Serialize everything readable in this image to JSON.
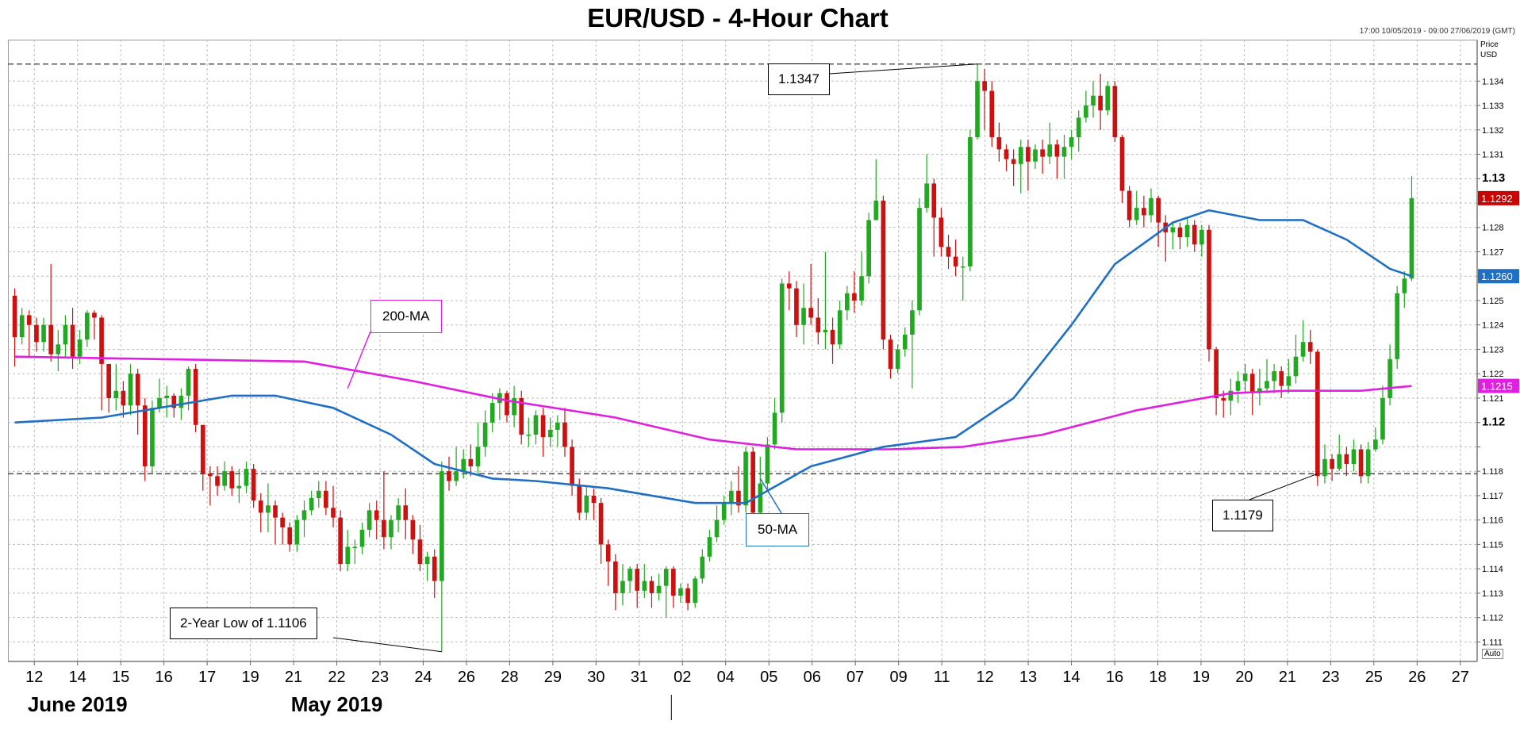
{
  "chart_data": {
    "type": "candlestick",
    "title": "EUR/USD - 4-Hour Chart",
    "range_note": "17:00 10/05/2019 - 09:00 27/06/2019 (GMT)",
    "yaxis_header": [
      "Price",
      "USD"
    ],
    "ylim": [
      1.1102,
      1.1357
    ],
    "y_ticks": [
      1.111,
      1.112,
      1.113,
      1.114,
      1.115,
      1.116,
      1.117,
      1.118,
      1.119,
      1.12,
      1.121,
      1.122,
      1.123,
      1.124,
      1.125,
      1.126,
      1.127,
      1.128,
      1.129,
      1.13,
      1.131,
      1.132,
      1.133,
      1.134
    ],
    "y_tick_labels": [
      "1.111",
      "1.112",
      "1.113",
      "1.114",
      "1.115",
      "1.116",
      "1.117",
      "1.118",
      "",
      "1.12",
      "1.121",
      "1.122",
      "1.123",
      "1.124",
      "1.125",
      "",
      "1.127",
      "1.128",
      "",
      "1.13",
      "1.131",
      "1.132",
      "1.133",
      "1.134"
    ],
    "y_tick_bold": [
      1.12,
      1.13
    ],
    "price_tags": [
      {
        "label": "1.1292",
        "value": 1.1292,
        "color": "#cc0000"
      },
      {
        "label": "1.1260",
        "value": 1.126,
        "color": "#1f6fc4"
      },
      {
        "label": "1.1215",
        "value": 1.1215,
        "color": "#e020e0"
      }
    ],
    "x_day_labels": [
      "12",
      "14",
      "15",
      "16",
      "17",
      "19",
      "21",
      "22",
      "23",
      "24",
      "26",
      "28",
      "29",
      "30",
      "31",
      "02",
      "04",
      "05",
      "06",
      "07",
      "09",
      "11",
      "12",
      "13",
      "14",
      "16",
      "18",
      "19",
      "20",
      "21",
      "23",
      "25",
      "26",
      "27"
    ],
    "month_labels": [
      {
        "label": "May 2019",
        "anchor_day": "22"
      },
      {
        "label": "June 2019",
        "anchor_day": "14"
      }
    ],
    "month_divider_day": "02",
    "horizontal_levels": [
      1.1347,
      1.1179
    ],
    "callouts": [
      {
        "text": "1.1347",
        "value": 1.1347
      },
      {
        "text": "1.1179",
        "value": 1.1179
      },
      {
        "text": "2-Year Low of 1.1106",
        "value": 1.1106
      }
    ],
    "ma_labels": {
      "ma200": "200-MA",
      "ma50": "50-MA"
    },
    "ma200_color": "#e020e0",
    "ma50_color": "#1f6fc4",
    "ma200": [
      [
        0,
        1.1227
      ],
      [
        20,
        1.1226
      ],
      [
        40,
        1.1225
      ],
      [
        55,
        1.1217
      ],
      [
        68,
        1.1209
      ],
      [
        83,
        1.1202
      ],
      [
        96,
        1.1193
      ],
      [
        108,
        1.1189
      ],
      [
        121,
        1.1189
      ],
      [
        131,
        1.119
      ],
      [
        142,
        1.1195
      ],
      [
        155,
        1.1205
      ],
      [
        168,
        1.1212
      ],
      [
        176,
        1.1213
      ],
      [
        186,
        1.1213
      ],
      [
        193,
        1.1215
      ]
    ],
    "ma50": [
      [
        0,
        1.12
      ],
      [
        12,
        1.1202
      ],
      [
        24,
        1.1208
      ],
      [
        30,
        1.1211
      ],
      [
        36,
        1.1211
      ],
      [
        44,
        1.1206
      ],
      [
        52,
        1.1195
      ],
      [
        58,
        1.1183
      ],
      [
        66,
        1.1177
      ],
      [
        72,
        1.1176
      ],
      [
        82,
        1.1173
      ],
      [
        94,
        1.1167
      ],
      [
        101,
        1.1167
      ],
      [
        110,
        1.1182
      ],
      [
        120,
        1.119
      ],
      [
        130,
        1.1194
      ],
      [
        138,
        1.121
      ],
      [
        146,
        1.124
      ],
      [
        152,
        1.1265
      ],
      [
        160,
        1.1282
      ],
      [
        165,
        1.1287
      ],
      [
        172,
        1.1283
      ],
      [
        178,
        1.1283
      ],
      [
        184,
        1.1275
      ],
      [
        190,
        1.1263
      ],
      [
        193,
        1.126
      ]
    ],
    "candles": [
      [
        1.1252,
        1.1235,
        1.1255,
        1.1223
      ],
      [
        1.1235,
        1.1244,
        1.1247,
        1.1232
      ],
      [
        1.1244,
        1.124,
        1.1246,
        1.1227
      ],
      [
        1.124,
        1.1233,
        1.1243,
        1.1229
      ],
      [
        1.1233,
        1.124,
        1.1243,
        1.1229
      ],
      [
        1.124,
        1.1228,
        1.1265,
        1.1225
      ],
      [
        1.1228,
        1.1232,
        1.1238,
        1.1221
      ],
      [
        1.1232,
        1.124,
        1.1244,
        1.1227
      ],
      [
        1.124,
        1.1227,
        1.1247,
        1.1222
      ],
      [
        1.1227,
        1.1234,
        1.1238,
        1.1224
      ],
      [
        1.1234,
        1.1245,
        1.1246,
        1.1231
      ],
      [
        1.1245,
        1.1243,
        1.1246,
        1.1234
      ],
      [
        1.1243,
        1.1224,
        1.1244,
        1.1205
      ],
      [
        1.1224,
        1.121,
        1.1224,
        1.1204
      ],
      [
        1.121,
        1.1213,
        1.1224,
        1.1205
      ],
      [
        1.1213,
        1.1207,
        1.1217,
        1.1202
      ],
      [
        1.1207,
        1.122,
        1.1224,
        1.1203
      ],
      [
        1.122,
        1.1207,
        1.1222,
        1.1195
      ],
      [
        1.1207,
        1.1182,
        1.121,
        1.1176
      ],
      [
        1.1182,
        1.1206,
        1.1209,
        1.1179
      ],
      [
        1.1206,
        1.121,
        1.1218,
        1.1204
      ],
      [
        1.121,
        1.1211,
        1.1215,
        1.1202
      ],
      [
        1.1211,
        1.1206,
        1.1212,
        1.1202
      ],
      [
        1.1206,
        1.1211,
        1.1214,
        1.1201
      ],
      [
        1.1211,
        1.1222,
        1.1223,
        1.1205
      ],
      [
        1.1222,
        1.1199,
        1.1224,
        1.1196
      ],
      [
        1.1199,
        1.1179,
        1.1199,
        1.1172
      ],
      [
        1.1179,
        1.1178,
        1.1182,
        1.1166
      ],
      [
        1.1178,
        1.1174,
        1.1182,
        1.117
      ],
      [
        1.1174,
        1.118,
        1.1184,
        1.1172
      ],
      [
        1.118,
        1.1173,
        1.1182,
        1.117
      ],
      [
        1.1173,
        1.1174,
        1.1181,
        1.1167
      ],
      [
        1.1174,
        1.1181,
        1.1184,
        1.1171
      ],
      [
        1.1181,
        1.1168,
        1.1183,
        1.1165
      ],
      [
        1.1168,
        1.1163,
        1.1171,
        1.1155
      ],
      [
        1.1163,
        1.1166,
        1.1175,
        1.1155
      ],
      [
        1.1166,
        1.1161,
        1.1168,
        1.115
      ],
      [
        1.1161,
        1.1157,
        1.1163,
        1.115
      ],
      [
        1.1157,
        1.115,
        1.1159,
        1.1147
      ],
      [
        1.115,
        1.116,
        1.1162,
        1.1147
      ],
      [
        1.116,
        1.1164,
        1.1168,
        1.1153
      ],
      [
        1.1164,
        1.1169,
        1.1172,
        1.1162
      ],
      [
        1.1169,
        1.1172,
        1.1176,
        1.1165
      ],
      [
        1.1172,
        1.1165,
        1.1176,
        1.1162
      ],
      [
        1.1165,
        1.1161,
        1.1174,
        1.1157
      ],
      [
        1.1161,
        1.1142,
        1.1164,
        1.1139
      ],
      [
        1.1142,
        1.1149,
        1.1156,
        1.1139
      ],
      [
        1.1149,
        1.1149,
        1.1152,
        1.1142
      ],
      [
        1.1149,
        1.1156,
        1.1159,
        1.1146
      ],
      [
        1.1156,
        1.1164,
        1.1167,
        1.1153
      ],
      [
        1.1164,
        1.116,
        1.1168,
        1.1152
      ],
      [
        1.116,
        1.1153,
        1.118,
        1.1148
      ],
      [
        1.1153,
        1.116,
        1.1162,
        1.1148
      ],
      [
        1.116,
        1.1166,
        1.1169,
        1.1155
      ],
      [
        1.1166,
        1.116,
        1.1173,
        1.1152
      ],
      [
        1.116,
        1.1152,
        1.1162,
        1.1146
      ],
      [
        1.1152,
        1.1142,
        1.1158,
        1.1139
      ],
      [
        1.1142,
        1.1145,
        1.1147,
        1.1135
      ],
      [
        1.1145,
        1.1135,
        1.1148,
        1.1128
      ],
      [
        1.1135,
        1.118,
        1.1184,
        1.1106
      ],
      [
        1.118,
        1.1176,
        1.1186,
        1.1172
      ],
      [
        1.1176,
        1.118,
        1.119,
        1.1174
      ],
      [
        1.118,
        1.1185,
        1.1189,
        1.1177
      ],
      [
        1.1185,
        1.1182,
        1.1191,
        1.1178
      ],
      [
        1.1182,
        1.119,
        1.12,
        1.1179
      ],
      [
        1.119,
        1.12,
        1.1205,
        1.1186
      ],
      [
        1.12,
        1.1208,
        1.1212,
        1.1196
      ],
      [
        1.1208,
        1.1212,
        1.1214,
        1.1201
      ],
      [
        1.1212,
        1.1203,
        1.1213,
        1.12
      ],
      [
        1.1203,
        1.121,
        1.1215,
        1.1198
      ],
      [
        1.121,
        1.1195,
        1.1213,
        1.1191
      ],
      [
        1.1195,
        1.1195,
        1.1202,
        1.119
      ],
      [
        1.1195,
        1.1203,
        1.1205,
        1.1191
      ],
      [
        1.1203,
        1.1194,
        1.1206,
        1.1186
      ],
      [
        1.1194,
        1.1197,
        1.1202,
        1.119
      ],
      [
        1.1197,
        1.12,
        1.1203,
        1.119
      ],
      [
        1.12,
        1.119,
        1.1206,
        1.1186
      ],
      [
        1.119,
        1.1174,
        1.1193,
        1.117
      ],
      [
        1.1174,
        1.1163,
        1.1177,
        1.116
      ],
      [
        1.1163,
        1.117,
        1.1174,
        1.116
      ],
      [
        1.117,
        1.1167,
        1.1173,
        1.116
      ],
      [
        1.1167,
        1.115,
        1.1169,
        1.1142
      ],
      [
        1.115,
        1.1143,
        1.1152,
        1.1133
      ],
      [
        1.1143,
        1.113,
        1.1146,
        1.1123
      ],
      [
        1.113,
        1.1135,
        1.1142,
        1.1125
      ],
      [
        1.1135,
        1.114,
        1.1141,
        1.113
      ],
      [
        1.114,
        1.1131,
        1.1142,
        1.1124
      ],
      [
        1.1131,
        1.1135,
        1.1142,
        1.1128
      ],
      [
        1.1135,
        1.113,
        1.1137,
        1.1124
      ],
      [
        1.113,
        1.1133,
        1.1138,
        1.1127
      ],
      [
        1.1133,
        1.114,
        1.1141,
        1.112
      ],
      [
        1.114,
        1.1129,
        1.1141,
        1.1124
      ],
      [
        1.1129,
        1.1132,
        1.1134,
        1.1126
      ],
      [
        1.1132,
        1.1126,
        1.1134,
        1.1123
      ],
      [
        1.1126,
        1.1136,
        1.1137,
        1.1124
      ],
      [
        1.1136,
        1.1145,
        1.1148,
        1.1134
      ],
      [
        1.1145,
        1.1153,
        1.1156,
        1.1143
      ],
      [
        1.1153,
        1.116,
        1.1166,
        1.1151
      ],
      [
        1.116,
        1.1167,
        1.117,
        1.1158
      ],
      [
        1.1167,
        1.1172,
        1.1176,
        1.1162
      ],
      [
        1.1172,
        1.1166,
        1.1182,
        1.1163
      ],
      [
        1.1166,
        1.1188,
        1.119,
        1.1163
      ],
      [
        1.1188,
        1.1163,
        1.119,
        1.116
      ],
      [
        1.1163,
        1.1175,
        1.1186,
        1.1161
      ],
      [
        1.1175,
        1.1191,
        1.1194,
        1.1172
      ],
      [
        1.1191,
        1.1204,
        1.121,
        1.1189
      ],
      [
        1.1204,
        1.1257,
        1.1259,
        1.12
      ],
      [
        1.1257,
        1.1255,
        1.1262,
        1.1246
      ],
      [
        1.1255,
        1.124,
        1.1258,
        1.1235
      ],
      [
        1.124,
        1.1247,
        1.1257,
        1.1232
      ],
      [
        1.1247,
        1.1243,
        1.1265,
        1.124
      ],
      [
        1.1243,
        1.1237,
        1.1251,
        1.1232
      ],
      [
        1.1237,
        1.1238,
        1.127,
        1.123
      ],
      [
        1.1238,
        1.1232,
        1.1243,
        1.1224
      ],
      [
        1.1232,
        1.1246,
        1.125,
        1.123
      ],
      [
        1.1246,
        1.1253,
        1.1256,
        1.1242
      ],
      [
        1.1253,
        1.125,
        1.1262,
        1.1245
      ],
      [
        1.125,
        1.126,
        1.127,
        1.1248
      ],
      [
        1.126,
        1.1283,
        1.1286,
        1.1257
      ],
      [
        1.1283,
        1.1291,
        1.1308,
        1.1283
      ],
      [
        1.1291,
        1.1234,
        1.1293,
        1.123
      ],
      [
        1.1234,
        1.1222,
        1.1236,
        1.1218
      ],
      [
        1.1222,
        1.123,
        1.1232,
        1.122
      ],
      [
        1.123,
        1.1236,
        1.1239,
        1.1227
      ],
      [
        1.1236,
        1.1246,
        1.125,
        1.1214
      ],
      [
        1.1246,
        1.1288,
        1.1292,
        1.1244
      ],
      [
        1.1288,
        1.1298,
        1.131,
        1.1286
      ],
      [
        1.1298,
        1.1284,
        1.13,
        1.1268
      ],
      [
        1.1284,
        1.1272,
        1.1288,
        1.1268
      ],
      [
        1.1272,
        1.1268,
        1.1277,
        1.1263
      ],
      [
        1.1268,
        1.1264,
        1.1275,
        1.126
      ],
      [
        1.1264,
        1.1264,
        1.1268,
        1.125
      ],
      [
        1.1264,
        1.1317,
        1.132,
        1.1262
      ],
      [
        1.1317,
        1.134,
        1.1347,
        1.1316
      ],
      [
        1.134,
        1.1336,
        1.1345,
        1.132
      ],
      [
        1.1336,
        1.1317,
        1.134,
        1.1313
      ],
      [
        1.1317,
        1.1312,
        1.1323,
        1.1307
      ],
      [
        1.1312,
        1.1308,
        1.1314,
        1.1303
      ],
      [
        1.1308,
        1.1306,
        1.1312,
        1.1297
      ],
      [
        1.1306,
        1.1313,
        1.1316,
        1.1294
      ],
      [
        1.1313,
        1.1307,
        1.1316,
        1.1295
      ],
      [
        1.1307,
        1.1312,
        1.1314,
        1.1304
      ],
      [
        1.1312,
        1.1309,
        1.1316,
        1.1302
      ],
      [
        1.1309,
        1.1314,
        1.1323,
        1.1306
      ],
      [
        1.1314,
        1.1309,
        1.1316,
        1.13
      ],
      [
        1.1309,
        1.1313,
        1.1318,
        1.13
      ],
      [
        1.1313,
        1.1317,
        1.132,
        1.1308
      ],
      [
        1.1317,
        1.1325,
        1.1328,
        1.1311
      ],
      [
        1.1325,
        1.133,
        1.1336,
        1.1323
      ],
      [
        1.133,
        1.1334,
        1.134,
        1.1325
      ],
      [
        1.1334,
        1.1328,
        1.1343,
        1.132
      ],
      [
        1.1328,
        1.1338,
        1.134,
        1.1326
      ],
      [
        1.1338,
        1.1317,
        1.134,
        1.1315
      ],
      [
        1.1317,
        1.1295,
        1.1318,
        1.129
      ],
      [
        1.1295,
        1.1283,
        1.1297,
        1.128
      ],
      [
        1.1283,
        1.1288,
        1.1295,
        1.1281
      ],
      [
        1.1288,
        1.1285,
        1.1293,
        1.128
      ],
      [
        1.1285,
        1.1292,
        1.1296,
        1.1282
      ],
      [
        1.1292,
        1.1282,
        1.1293,
        1.1272
      ],
      [
        1.1282,
        1.1278,
        1.1285,
        1.1266
      ],
      [
        1.1278,
        1.128,
        1.1282,
        1.1271
      ],
      [
        1.128,
        1.1276,
        1.1282,
        1.1271
      ],
      [
        1.1276,
        1.1281,
        1.1284,
        1.1272
      ],
      [
        1.1281,
        1.1273,
        1.1283,
        1.127
      ],
      [
        1.1273,
        1.1279,
        1.1281,
        1.1268
      ],
      [
        1.1279,
        1.123,
        1.1281,
        1.1225
      ],
      [
        1.123,
        1.121,
        1.1231,
        1.1203
      ],
      [
        1.121,
        1.1209,
        1.1213,
        1.1202
      ],
      [
        1.1209,
        1.1213,
        1.1218,
        1.1203
      ],
      [
        1.1213,
        1.1217,
        1.1221,
        1.1208
      ],
      [
        1.1217,
        1.122,
        1.1224,
        1.1212
      ],
      [
        1.122,
        1.1212,
        1.1222,
        1.1203
      ],
      [
        1.1212,
        1.1214,
        1.1222,
        1.1207
      ],
      [
        1.1214,
        1.1217,
        1.1226,
        1.1212
      ],
      [
        1.1217,
        1.1221,
        1.1224,
        1.1212
      ],
      [
        1.1221,
        1.1215,
        1.1223,
        1.121
      ],
      [
        1.1215,
        1.1219,
        1.1226,
        1.1212
      ],
      [
        1.1219,
        1.1227,
        1.1236,
        1.1216
      ],
      [
        1.1227,
        1.1233,
        1.1242,
        1.1225
      ],
      [
        1.1233,
        1.1229,
        1.1238,
        1.1224
      ],
      [
        1.1229,
        1.1178,
        1.123,
        1.1174
      ],
      [
        1.1178,
        1.1185,
        1.1191,
        1.1175
      ],
      [
        1.1185,
        1.1181,
        1.1187,
        1.1176
      ],
      [
        1.1181,
        1.1187,
        1.1195,
        1.118
      ],
      [
        1.1187,
        1.1183,
        1.119,
        1.1178
      ],
      [
        1.1183,
        1.1189,
        1.1193,
        1.118
      ],
      [
        1.1189,
        1.1178,
        1.1191,
        1.1175
      ],
      [
        1.1178,
        1.1189,
        1.1192,
        1.1175
      ],
      [
        1.1189,
        1.1193,
        1.1198,
        1.1188
      ],
      [
        1.1193,
        1.121,
        1.1215,
        1.1191
      ],
      [
        1.121,
        1.1226,
        1.1232,
        1.1207
      ],
      [
        1.1226,
        1.1253,
        1.1256,
        1.1222
      ],
      [
        1.1253,
        1.1259,
        1.1262,
        1.1247
      ],
      [
        1.1259,
        1.1292,
        1.1301,
        1.1258
      ]
    ]
  }
}
